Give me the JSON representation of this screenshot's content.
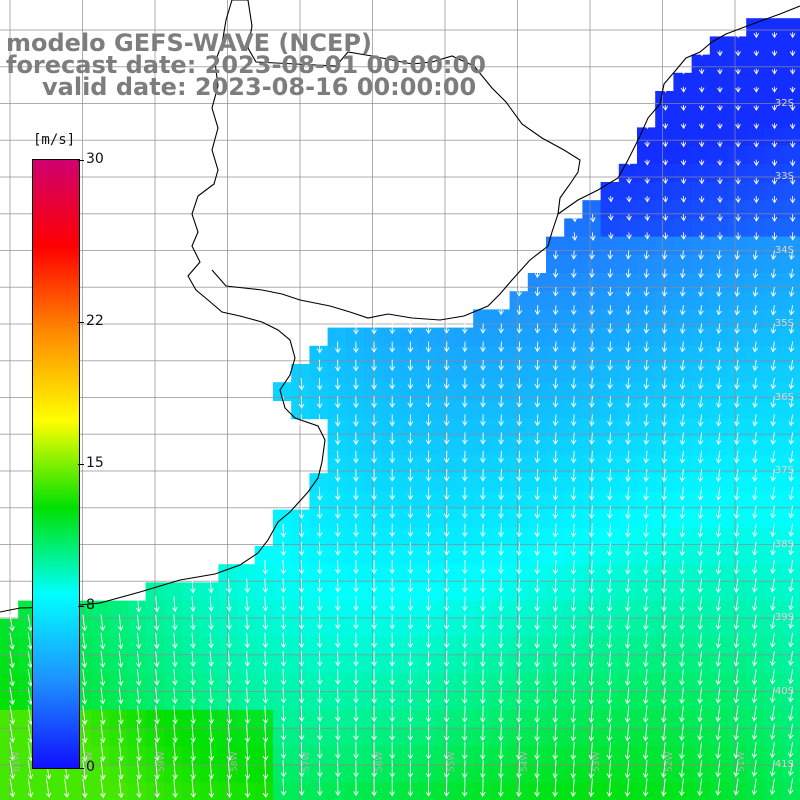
{
  "title": {
    "line1": "modelo GEFS-WAVE (NCEP)",
    "line2": "forecast date: 2023-08-01 00:00:00",
    "line3": "valid date: 2023-08-16 00:00:00"
  },
  "colorbar": {
    "unit": "[m/s]",
    "ticks": [
      "30",
      "22",
      "15",
      "8",
      "0"
    ],
    "tick_values": [
      30,
      22,
      15,
      8,
      0
    ],
    "min": 0,
    "max": 30,
    "colors": [
      "#1010ff",
      "#1e90ff",
      "#00ffff",
      "#00e000",
      "#ffff00",
      "#ff8c00",
      "#ff0000",
      "#d0006f"
    ]
  },
  "map": {
    "lat_labels": [
      "32S",
      "33S",
      "34S",
      "35S",
      "36S",
      "37S",
      "38S",
      "39S",
      "40S",
      "41S"
    ],
    "lon_labels": [
      "61W",
      "60W",
      "59W",
      "58W",
      "57W",
      "56W",
      "55W",
      "54W",
      "53W",
      "52W",
      "51W"
    ],
    "lat_range": [
      -41,
      -31
    ],
    "lon_range": [
      -61,
      -50.5
    ],
    "land_color": "#ffffff",
    "coast_color": "#000000",
    "grid_color": "#8c8c8c",
    "arrow_color": "#ffffff",
    "field_note_units": "m/s"
  }
}
